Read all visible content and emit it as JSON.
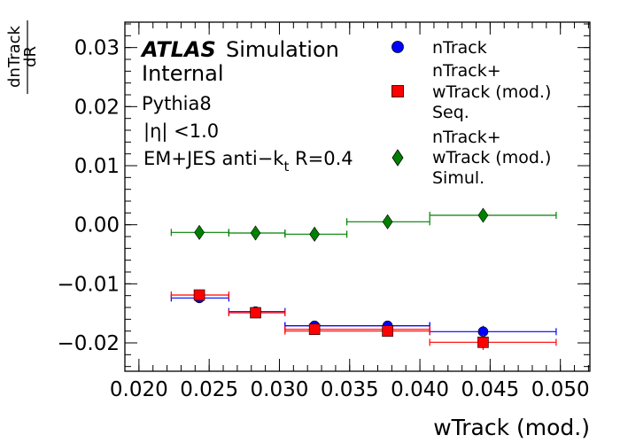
{
  "colors": {
    "nTrack": "#0000ff",
    "seq": "#ff0000",
    "simul": "#008000"
  },
  "annotations": {
    "atlas": "ATLAS",
    "simulation": "Simulation",
    "internal": "Internal",
    "generator": "Pythia8",
    "eta_cut": "|η| <1.0",
    "jets_prefix": "EM+JES anti−k",
    "jets_sub": "t",
    "jets_suffix": " R=0.4"
  },
  "chart_data": {
    "type": "scatter",
    "xlabel": "wTrack (mod.)",
    "ylabel_num": "dR",
    "ylabel_den": "dnTrack",
    "xlim": [
      0.019,
      0.0521
    ],
    "ylim": [
      -0.0248,
      0.0343
    ],
    "x_ticks": [
      "0.020",
      "0.025",
      "0.030",
      "0.035",
      "0.040",
      "0.045",
      "0.050"
    ],
    "y_ticks": [
      "0.03",
      "0.02",
      "0.01",
      "0.00",
      "−0.01",
      "−0.02"
    ],
    "series": [
      {
        "name_lines": [
          "nTrack"
        ],
        "marker": "circle",
        "color": "#0000ff",
        "points": [
          {
            "x": 0.0243,
            "y": -0.0124,
            "xlo": 0.0223,
            "xhi": 0.0264,
            "yerr": 0.0004
          },
          {
            "x": 0.0283,
            "y": -0.0147,
            "xlo": 0.0264,
            "xhi": 0.0304,
            "yerr": 0.0004
          },
          {
            "x": 0.0325,
            "y": -0.0171,
            "xlo": 0.0304,
            "xhi": 0.0407,
            "yerr": 0.0005
          },
          {
            "x": 0.0377,
            "y": -0.0171,
            "xlo": 0.0304,
            "xhi": 0.0407,
            "yerr": 0.0007
          },
          {
            "x": 0.0445,
            "y": -0.0181,
            "xlo": 0.0407,
            "xhi": 0.0497,
            "yerr": 0.001
          }
        ]
      },
      {
        "name_lines": [
          "nTrack+",
          "wTrack (mod.)",
          "Seq."
        ],
        "marker": "square",
        "color": "#ff0000",
        "points": [
          {
            "x": 0.0243,
            "y": -0.0119,
            "xlo": 0.0223,
            "xhi": 0.0264,
            "yerr": 0.0004
          },
          {
            "x": 0.0283,
            "y": -0.0149,
            "xlo": 0.0264,
            "xhi": 0.0304,
            "yerr": 0.0004
          },
          {
            "x": 0.0325,
            "y": -0.0177,
            "xlo": 0.0304,
            "xhi": 0.0407,
            "yerr": 0.0005
          },
          {
            "x": 0.0377,
            "y": -0.018,
            "xlo": 0.0304,
            "xhi": 0.0407,
            "yerr": 0.0007
          },
          {
            "x": 0.0445,
            "y": -0.0199,
            "xlo": 0.0407,
            "xhi": 0.0497,
            "yerr": 0.0013
          }
        ]
      },
      {
        "name_lines": [
          "nTrack+",
          "wTrack (mod.)",
          "Simul."
        ],
        "marker": "diamond",
        "color": "#008000",
        "points": [
          {
            "x": 0.0243,
            "y": -0.0013,
            "xlo": 0.0223,
            "xhi": 0.0264,
            "yerr": 0.0006
          },
          {
            "x": 0.0283,
            "y": -0.0014,
            "xlo": 0.0264,
            "xhi": 0.0304,
            "yerr": 0.0006
          },
          {
            "x": 0.0325,
            "y": -0.0016,
            "xlo": 0.0304,
            "xhi": 0.0348,
            "yerr": 0.0007
          },
          {
            "x": 0.0377,
            "y": 0.0005,
            "xlo": 0.0348,
            "xhi": 0.0407,
            "yerr": 0.0009
          },
          {
            "x": 0.0445,
            "y": 0.0016,
            "xlo": 0.0407,
            "xhi": 0.0497,
            "yerr": 0.001
          }
        ]
      }
    ]
  }
}
